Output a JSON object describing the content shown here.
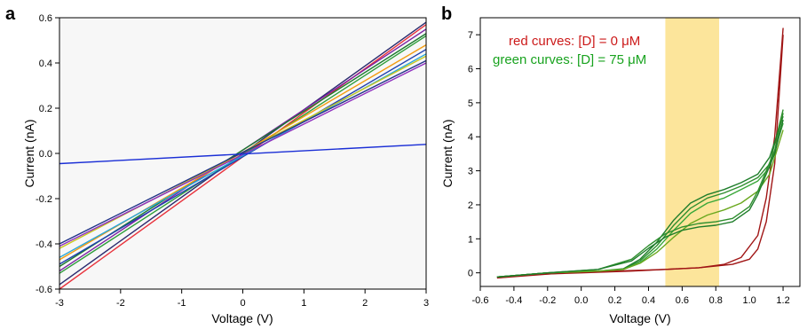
{
  "chart_data": [
    {
      "panel": "a",
      "type": "line",
      "xlabel": "Voltage (V)",
      "ylabel": "Current (nA)",
      "xlim": [
        -3,
        3
      ],
      "ylim": [
        -0.6,
        0.6
      ],
      "xticks": [
        -3,
        -2,
        -1,
        0,
        1,
        2,
        3
      ],
      "yticks": [
        -0.6,
        -0.4,
        -0.2,
        0.0,
        0.2,
        0.4,
        0.6
      ],
      "ytick_labels": [
        "-0.6",
        "-0.4",
        "-0.2",
        "0.0",
        "0.2",
        "0.4",
        "0.6"
      ],
      "plot_background": "#f7f7f7",
      "grid": false,
      "series": [
        {
          "color": "#e8323c",
          "x": [
            -3,
            3
          ],
          "y": [
            -0.6,
            0.57
          ]
        },
        {
          "color": "#2a2a6e",
          "x": [
            -3,
            3
          ],
          "y": [
            -0.58,
            0.58
          ]
        },
        {
          "color": "#7a1fa2",
          "x": [
            -3,
            3
          ],
          "y": [
            -0.52,
            0.55
          ]
        },
        {
          "color": "#1b7a2e",
          "x": [
            -3,
            3
          ],
          "y": [
            -0.5,
            0.53
          ]
        },
        {
          "color": "#2e9d3a",
          "x": [
            -3,
            3
          ],
          "y": [
            -0.53,
            0.52
          ]
        },
        {
          "color": "#1f3fae",
          "x": [
            -3,
            3
          ],
          "y": [
            -0.49,
            0.46
          ]
        },
        {
          "color": "#f39c12",
          "x": [
            -3,
            3
          ],
          "y": [
            -0.47,
            0.48
          ]
        },
        {
          "color": "#26a6d9",
          "x": [
            -3,
            3
          ],
          "y": [
            -0.46,
            0.44
          ]
        },
        {
          "color": "#c8c81e",
          "x": [
            -3,
            3
          ],
          "y": [
            -0.42,
            0.43
          ]
        },
        {
          "color": "#8e2fbf",
          "x": [
            -3,
            3
          ],
          "y": [
            -0.41,
            0.4
          ]
        },
        {
          "color": "#223388",
          "x": [
            -3,
            3
          ],
          "y": [
            -0.4,
            0.41
          ]
        },
        {
          "color": "#1a2ed6",
          "x": [
            -3,
            3
          ],
          "y": [
            -0.045,
            0.04
          ]
        }
      ]
    },
    {
      "panel": "b",
      "type": "line",
      "xlabel": "Voltage (V)",
      "ylabel": "Current (nA)",
      "xlim": [
        -0.6,
        1.3
      ],
      "ylim": [
        -0.4,
        7.5
      ],
      "xticks": [
        -0.6,
        -0.4,
        -0.2,
        0.0,
        0.2,
        0.4,
        0.6,
        0.8,
        1.0,
        1.2
      ],
      "xtick_labels": [
        "-0.6",
        "-0.4",
        "-0.2",
        "0.0",
        "0.2",
        "0.4",
        "0.6",
        "0.8",
        "1.0",
        "1.2"
      ],
      "yticks": [
        0,
        1,
        2,
        3,
        4,
        5,
        6,
        7
      ],
      "highlight": {
        "x0": 0.5,
        "x1": 0.82,
        "color": "#fbe08a"
      },
      "annotations": [
        {
          "text": "red curves: [D] = 0 μM",
          "color": "#cc1a1a"
        },
        {
          "text": "green curves: [D] = 75 μM",
          "color": "#19a31f"
        }
      ],
      "series": [
        {
          "color": "#a01515",
          "x": [
            -0.5,
            -0.3,
            0.0,
            0.3,
            0.5,
            0.7,
            0.85,
            0.95,
            1.05,
            1.1,
            1.15,
            1.2
          ],
          "y": [
            -0.15,
            -0.05,
            0.0,
            0.05,
            0.1,
            0.15,
            0.25,
            0.45,
            1.1,
            2.2,
            4.0,
            7.2
          ]
        },
        {
          "color": "#a01515",
          "x": [
            1.2,
            1.15,
            1.1,
            1.05,
            1.0,
            0.9,
            0.7,
            0.5,
            0.2,
            -0.1,
            -0.5
          ],
          "y": [
            7.0,
            3.2,
            1.5,
            0.7,
            0.4,
            0.25,
            0.15,
            0.1,
            0.05,
            0.0,
            -0.15
          ]
        },
        {
          "color": "#2f8f2f",
          "x": [
            -0.5,
            -0.2,
            0.1,
            0.25,
            0.35,
            0.45,
            0.55,
            0.65,
            0.75,
            0.85,
            0.95,
            1.05,
            1.12,
            1.2
          ],
          "y": [
            -0.12,
            0.0,
            0.05,
            0.1,
            0.35,
            0.8,
            1.4,
            1.9,
            2.2,
            2.35,
            2.55,
            2.8,
            3.2,
            4.8
          ]
        },
        {
          "color": "#1e7d2a",
          "x": [
            -0.5,
            -0.2,
            0.1,
            0.25,
            0.35,
            0.45,
            0.55,
            0.65,
            0.75,
            0.85,
            0.95,
            1.05,
            1.12,
            1.2
          ],
          "y": [
            -0.12,
            0.0,
            0.05,
            0.12,
            0.4,
            0.9,
            1.55,
            2.05,
            2.3,
            2.45,
            2.65,
            2.9,
            3.4,
            4.6
          ]
        },
        {
          "color": "#3aa83a",
          "x": [
            -0.5,
            -0.2,
            0.1,
            0.25,
            0.35,
            0.45,
            0.55,
            0.65,
            0.75,
            0.85,
            0.95,
            1.05,
            1.12,
            1.2
          ],
          "y": [
            -0.12,
            0.0,
            0.05,
            0.1,
            0.3,
            0.7,
            1.25,
            1.75,
            2.05,
            2.2,
            2.45,
            2.7,
            3.1,
            4.4
          ]
        },
        {
          "color": "#6aa81e",
          "x": [
            -0.5,
            -0.2,
            0.1,
            0.25,
            0.35,
            0.45,
            0.55,
            0.65,
            0.75,
            0.85,
            0.95,
            1.05,
            1.12,
            1.2
          ],
          "y": [
            -0.12,
            0.0,
            0.05,
            0.1,
            0.28,
            0.6,
            1.05,
            1.45,
            1.7,
            1.85,
            2.05,
            2.4,
            2.9,
            4.2
          ]
        },
        {
          "color": "#2f8f2f",
          "x": [
            1.2,
            1.15,
            1.1,
            1.05,
            1.0,
            0.9,
            0.8,
            0.7,
            0.6,
            0.5,
            0.4,
            0.3,
            0.1,
            -0.2,
            -0.5
          ],
          "y": [
            4.7,
            3.6,
            3.0,
            2.4,
            1.95,
            1.6,
            1.5,
            1.45,
            1.35,
            1.15,
            0.8,
            0.4,
            0.1,
            0.0,
            -0.12
          ]
        },
        {
          "color": "#1e7d2a",
          "x": [
            1.2,
            1.15,
            1.1,
            1.05,
            1.0,
            0.9,
            0.8,
            0.7,
            0.6,
            0.5,
            0.4,
            0.3,
            0.1,
            -0.2,
            -0.5
          ],
          "y": [
            4.5,
            3.5,
            2.9,
            2.3,
            1.85,
            1.5,
            1.4,
            1.35,
            1.25,
            1.05,
            0.72,
            0.35,
            0.1,
            0.0,
            -0.12
          ]
        }
      ]
    }
  ]
}
